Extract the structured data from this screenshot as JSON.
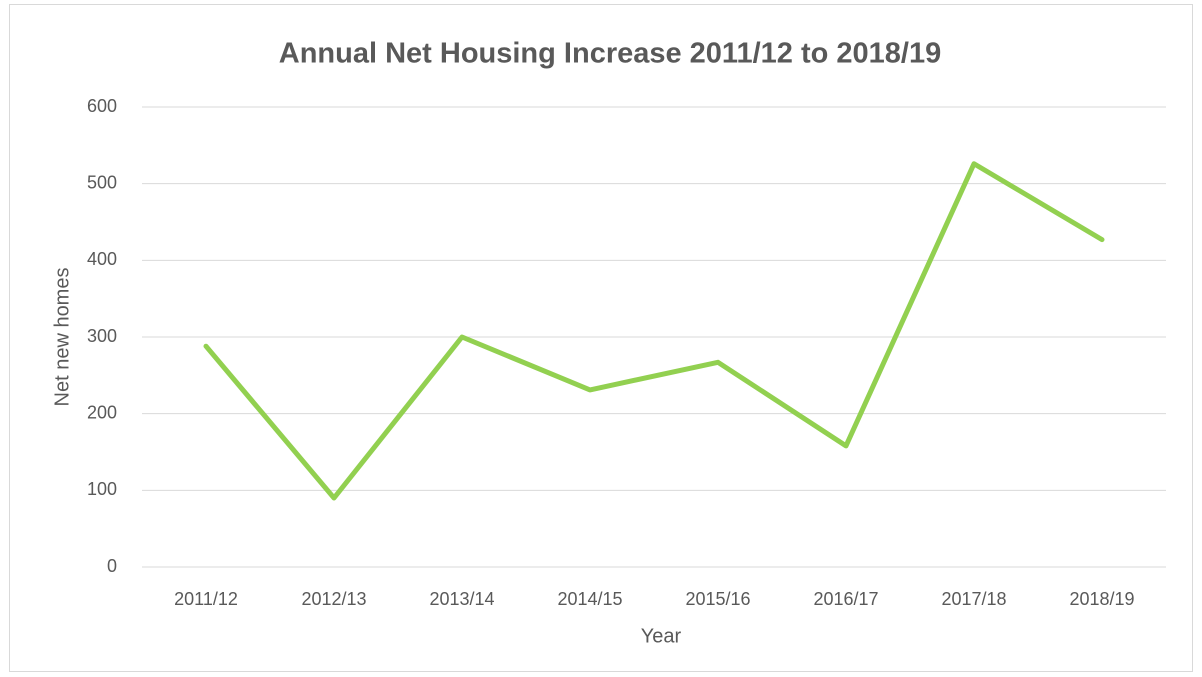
{
  "chart_data": {
    "type": "line",
    "title": "Annual Net Housing Increase 2011/12 to 2018/19",
    "x_label": "Year",
    "y_label": "Net new homes",
    "categories": [
      "2011/12",
      "2012/13",
      "2013/14",
      "2014/15",
      "2015/16",
      "2016/17",
      "2017/18",
      "2018/19"
    ],
    "values": [
      288,
      90,
      300,
      231,
      267,
      158,
      526,
      427
    ],
    "color": "#92d050",
    "ylim": [
      0,
      600
    ],
    "yticks": [
      0,
      100,
      200,
      300,
      400,
      500,
      600
    ],
    "grid": true
  }
}
